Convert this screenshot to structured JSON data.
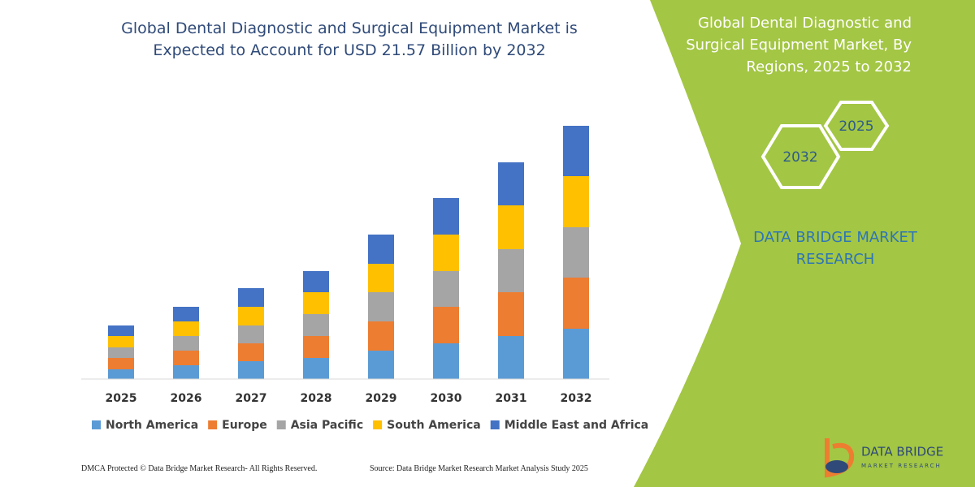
{
  "chart_data": {
    "type": "bar",
    "stacked": true,
    "title": "Global Dental Diagnostic and Surgical Equipment Market is Expected to Account for USD 21.57 Billion by 2032",
    "categories": [
      "2025",
      "2026",
      "2027",
      "2028",
      "2029",
      "2030",
      "2031",
      "2032"
    ],
    "series": [
      {
        "name": "North America",
        "color": "#5b9bd5",
        "values": [
          12,
          17,
          22,
          26,
          35,
          44,
          53,
          62
        ]
      },
      {
        "name": "Europe",
        "color": "#ed7d31",
        "values": [
          14,
          18,
          22,
          27,
          36,
          45,
          54,
          63
        ]
      },
      {
        "name": "Asia Pacific",
        "color": "#a5a5a5",
        "values": [
          13,
          18,
          22,
          27,
          36,
          44,
          53,
          62
        ]
      },
      {
        "name": "South America",
        "color": "#ffc000",
        "values": [
          14,
          18,
          23,
          27,
          35,
          45,
          54,
          63
        ]
      },
      {
        "name": "Middle East and Africa",
        "color": "#4472c4",
        "values": [
          13,
          18,
          23,
          26,
          36,
          45,
          53,
          62
        ]
      }
    ],
    "ylim": [
      0,
      320
    ]
  },
  "side_panel": {
    "title": "Global Dental Diagnostic and Surgical Equipment Market, By Regions, 2025 to 2032",
    "hexagons": [
      "2025",
      "2032"
    ],
    "brand": "DATA BRIDGE MARKET RESEARCH"
  },
  "footer": {
    "copyright": "DMCA Protected © Data Bridge Market Research- All Rights Reserved.",
    "source": "Source: Data Bridge Market Research Market Analysis Study 2025"
  },
  "logo": {
    "name": "DATA BRIDGE",
    "tagline": "MARKET RESEARCH"
  }
}
